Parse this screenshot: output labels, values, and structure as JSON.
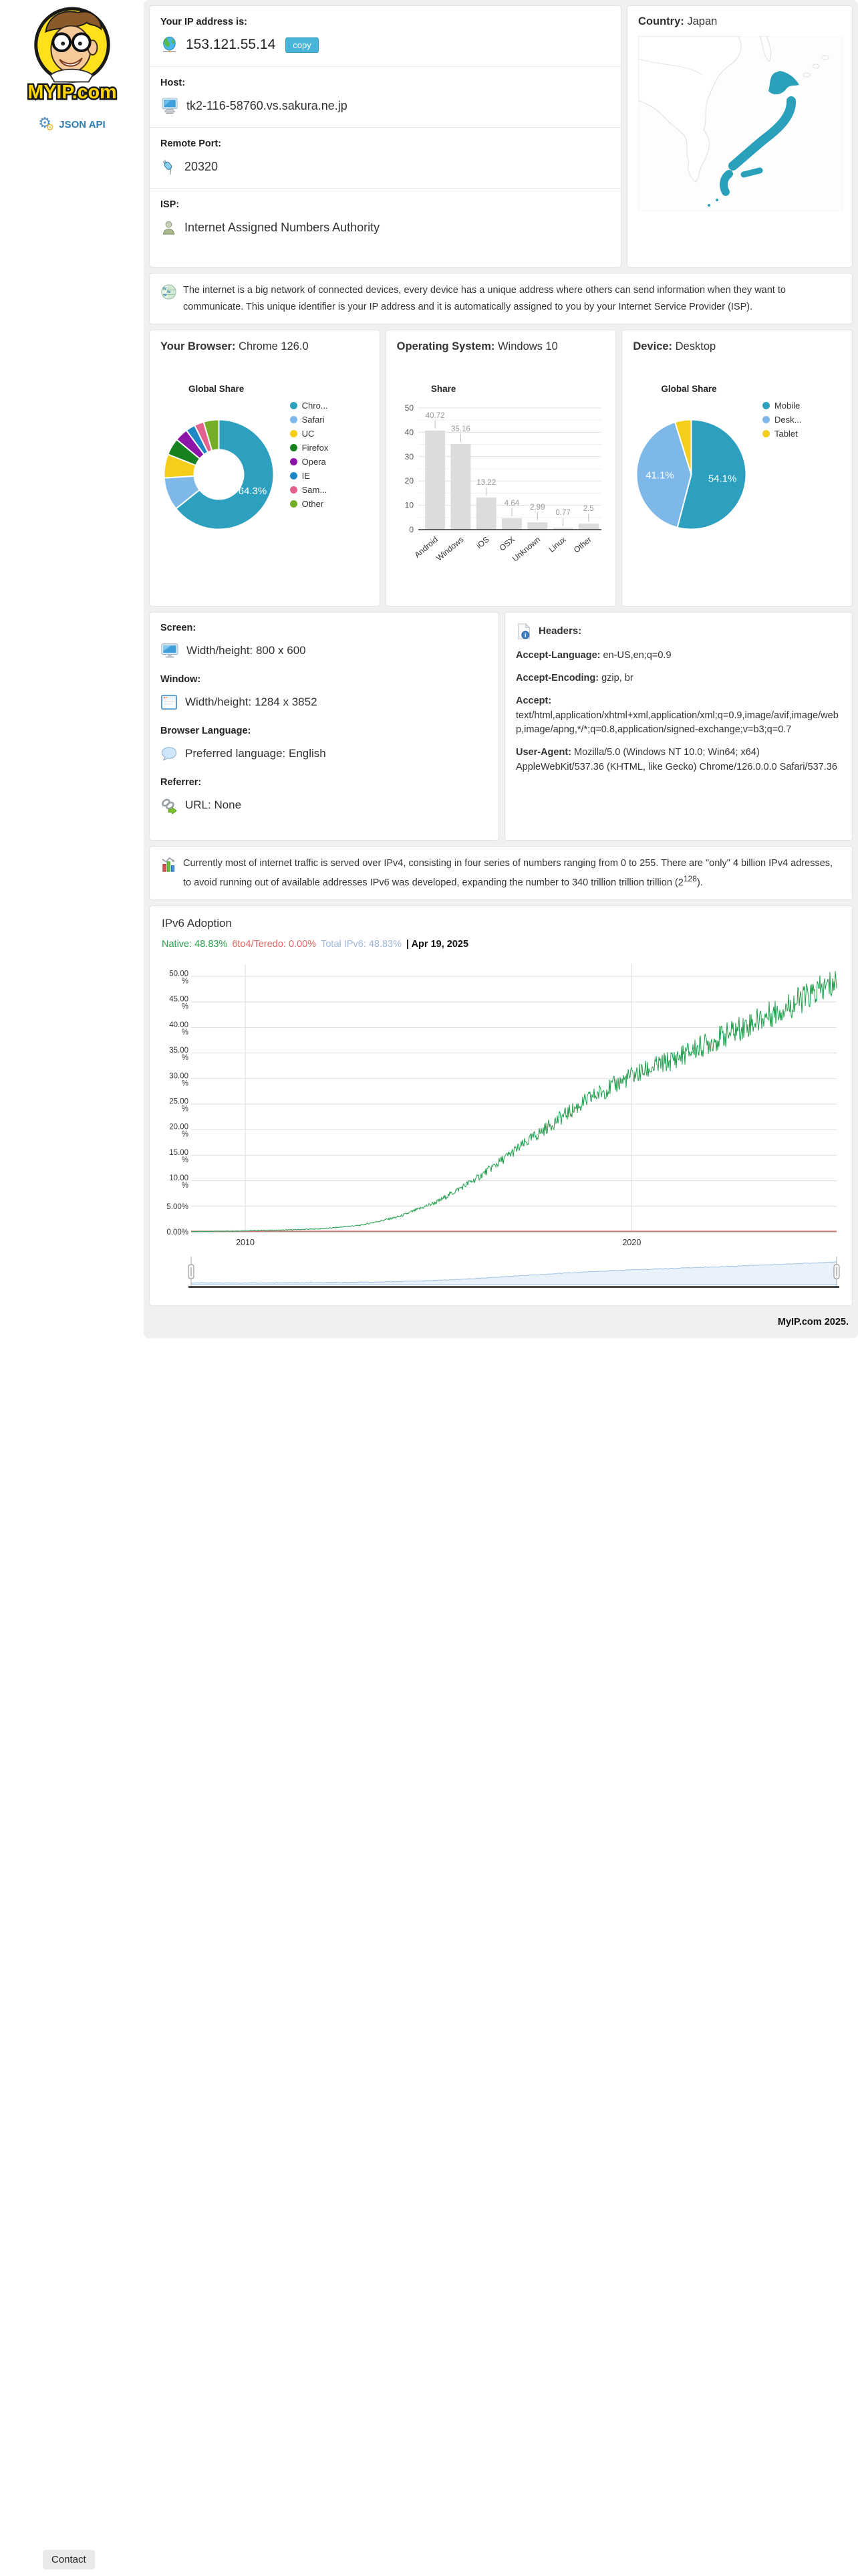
{
  "page": {
    "contact_label": "Contact"
  },
  "colors": {
    "accent_blue": "#47b4d8",
    "link_blue": "#2e7db2",
    "panel_bg": "#f0f0f0",
    "japan_fill": "#2aa0ba"
  },
  "sidebar": {
    "logo_text": "MYIP.com",
    "json_api_label": "JSON API"
  },
  "ip_card": {
    "rows": [
      {
        "id": "ip",
        "label": "Your IP address is:",
        "value": "153.121.55.14",
        "icon": "globe-icon",
        "button": "copy"
      },
      {
        "id": "host",
        "label": "Host:",
        "value": "tk2-116-58760.vs.sakura.ne.jp",
        "icon": "computer-icon"
      },
      {
        "id": "port",
        "label": "Remote Port:",
        "value": "20320",
        "icon": "plug-icon"
      },
      {
        "id": "isp",
        "label": "ISP:",
        "value": "Internet Assigned Numbers Authority",
        "icon": "person-icon"
      }
    ]
  },
  "country_card": {
    "label": "Country:",
    "value": "Japan"
  },
  "intro_card": {
    "icon": "www-globe-icon",
    "text": "The internet is a big network of connected devices, every device has a unique address where others can send information when they want to communicate. This unique identifier is your IP address and it is automatically assigned to you by your Internet Service Provider (ISP)."
  },
  "browser_card": {
    "label": "Your Browser:",
    "value": "Chrome 126.0"
  },
  "os_card": {
    "label": "Operating System:",
    "value": "Windows 10"
  },
  "device_card": {
    "label": "Device:",
    "value": "Desktop"
  },
  "client_card": {
    "sections": [
      {
        "id": "screen",
        "label": "Screen:",
        "icon": "monitor-icon",
        "value": "Width/height: 800 x 600"
      },
      {
        "id": "window",
        "label": "Window:",
        "icon": "window-icon",
        "value": "Width/height: 1284 x 3852"
      },
      {
        "id": "language",
        "label": "Browser Language:",
        "icon": "speech-bubble-icon",
        "value": "Preferred language: English"
      },
      {
        "id": "referrer",
        "label": "Referrer:",
        "icon": "link-icon",
        "value": "URL: None"
      }
    ]
  },
  "headers_card": {
    "title": "Headers:",
    "icon": "doc-info-icon",
    "items": [
      {
        "key": "Accept-Language:",
        "value": "en-US,en;q=0.9",
        "block": false
      },
      {
        "key": "Accept-Encoding:",
        "value": "gzip, br",
        "block": false
      },
      {
        "key": "Accept:",
        "value": "text/html,application/xhtml+xml,application/xml;q=0.9,image/avif,image/webp,image/apng,*/*;q=0.8,application/signed-exchange;v=b3;q=0.7",
        "block": true
      },
      {
        "key": "User-Agent:",
        "value": "Mozilla/5.0 (Windows NT 10.0; Win64; x64) AppleWebKit/537.36 (KHTML, like Gecko) Chrome/126.0.0.0 Safari/537.36",
        "block": false
      }
    ]
  },
  "ipv4_card": {
    "icon": "chart-icon",
    "text_before_sup": "Currently most of internet traffic is served over IPv4, consisting in four series of numbers ranging from 0 to 255. There are \"only\" 4 billion IPv4 adresses, to avoid running out of available addresses IPv6 was developed, expanding the number to 340 trillion trillion trillion (2",
    "sup": "128",
    "text_after_sup": ")."
  },
  "ipv6_card": {
    "title": "IPv6 Adoption",
    "legend": [
      {
        "text": "Native: 48.83%",
        "color": "#2f9e4f"
      },
      {
        "text": "6to4/Teredo: 0.00%",
        "color": "#e06666"
      },
      {
        "text": "Total IPv6: 48.83%",
        "color": "#9fb8d8"
      }
    ],
    "date": "| Apr 19, 2025"
  },
  "footer": {
    "text": "MyIP.com 2025."
  },
  "chart_data": [
    {
      "id": "browser_share",
      "type": "pie",
      "subtype": "donut",
      "title": "Global Share",
      "legend_position": "right",
      "categories": [
        "Chrome",
        "Safari",
        "UC",
        "Firefox",
        "Opera",
        "IE",
        "Samsung",
        "Other"
      ],
      "legend_labels": [
        "Chro...",
        "Safari",
        "UC",
        "Firefox",
        "Opera",
        "IE",
        "Sam...",
        "Other"
      ],
      "values": [
        64.3,
        9.7,
        7.0,
        5.0,
        3.9,
        2.8,
        2.8,
        4.5
      ],
      "colors": [
        "#2CA0BE",
        "#7EB8E8",
        "#F4CE1B",
        "#17821F",
        "#8C15A8",
        "#1E88C7",
        "#E2618E",
        "#74AE27"
      ],
      "slice_labels": [
        "64.3%",
        "",
        "",
        "",
        "",
        "",
        "",
        ""
      ]
    },
    {
      "id": "os_share",
      "type": "bar",
      "title": "Share",
      "categories": [
        "Android",
        "Windows",
        "iOS",
        "OSX",
        "Unknown",
        "Linux",
        "Other"
      ],
      "values": [
        40.72,
        35.16,
        13.22,
        4.64,
        2.99,
        0.77,
        2.5
      ],
      "bar_color": "#dcdcdc",
      "ylim": [
        0,
        50
      ],
      "yticks": [
        0,
        10,
        20,
        30,
        40,
        50
      ],
      "grid": true
    },
    {
      "id": "device_share",
      "type": "pie",
      "title": "Global Share",
      "legend_position": "right",
      "categories": [
        "Mobile",
        "Desktop",
        "Tablet"
      ],
      "legend_labels": [
        "Mobile",
        "Desk...",
        "Tablet"
      ],
      "values": [
        54.1,
        41.1,
        4.8
      ],
      "colors": [
        "#2CA0BE",
        "#7EB8E8",
        "#F4CE1B"
      ],
      "slice_labels": [
        "54.1%",
        "41.1%",
        ""
      ]
    },
    {
      "id": "ipv6_adoption",
      "type": "line",
      "title": "IPv6 Adoption",
      "x_range": [
        2008.6,
        2025.3
      ],
      "ylim": [
        0,
        50
      ],
      "grid": true,
      "ytick_labels": [
        "50.00 %",
        "45.00 %",
        "40.00 %",
        "35.00 %",
        "30.00 %",
        "25.00 %",
        "20.00 %",
        "15.00 %",
        "10.00 %",
        "5.00%",
        "0.00%"
      ],
      "xticks": [
        2010,
        2020
      ],
      "series": [
        {
          "name": "Native",
          "color": "#1e9e4a",
          "noise": true,
          "anchors": [
            [
              2008.6,
              0.05
            ],
            [
              2010,
              0.2
            ],
            [
              2011,
              0.35
            ],
            [
              2012,
              0.6
            ],
            [
              2013,
              1.3
            ],
            [
              2014,
              3.0
            ],
            [
              2015,
              6.0
            ],
            [
              2016,
              10.5
            ],
            [
              2017,
              16.0
            ],
            [
              2018,
              21.5
            ],
            [
              2019,
              26.5
            ],
            [
              2020,
              30.5
            ],
            [
              2021,
              33.5
            ],
            [
              2022,
              37.0
            ],
            [
              2023,
              40.5
            ],
            [
              2024,
              44.0
            ],
            [
              2025.3,
              48.8
            ]
          ]
        },
        {
          "name": "6to4/Teredo",
          "color": "#e06666",
          "noise": false,
          "anchors": [
            [
              2008.6,
              0
            ],
            [
              2025.3,
              0
            ]
          ]
        }
      ],
      "current": {
        "native": "48.83%",
        "teredo": "0.00%",
        "total": "48.83%",
        "date": "Apr 19, 2025"
      }
    }
  ]
}
